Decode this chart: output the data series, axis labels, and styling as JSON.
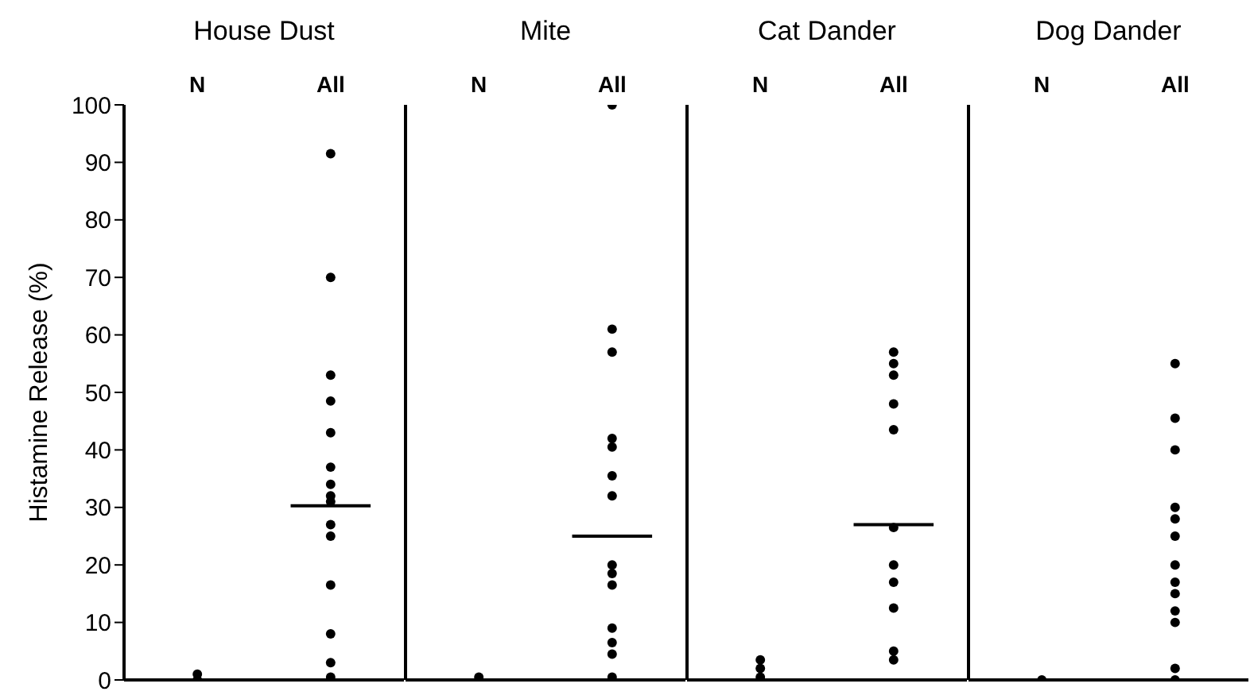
{
  "chart_data": [
    {
      "type": "scatter",
      "title": "House Dust",
      "ylabel": "Histamine Release (%)",
      "categories": [
        "N",
        "All"
      ],
      "marker": "circle",
      "ylim": [
        0,
        100
      ],
      "yticks": [
        0,
        10,
        20,
        30,
        40,
        50,
        60,
        70,
        80,
        90,
        100
      ],
      "series": [
        {
          "color": "#000000",
          "x": [
            "N",
            "N",
            "All",
            "All",
            "All",
            "All",
            "All",
            "All",
            "All",
            "All",
            "All",
            "All",
            "All",
            "All",
            "All",
            "All",
            "All"
          ],
          "values": [
            0,
            1,
            91.5,
            70,
            53,
            48.5,
            43,
            37,
            34,
            32,
            31,
            27,
            25,
            16.5,
            8,
            3,
            0.5
          ]
        }
      ],
      "ref_lines": [
        {
          "axis": "y",
          "value": 30.3
        }
      ]
    },
    {
      "type": "scatter",
      "title": "Mite",
      "categories": [
        "N",
        "All"
      ],
      "marker": "circle",
      "ylim": [
        0,
        100
      ],
      "yticks": [
        0,
        10,
        20,
        30,
        40,
        50,
        60,
        70,
        80,
        90,
        100
      ],
      "tick_labels": "x",
      "series": [
        {
          "color": "#000000",
          "x": [
            "N",
            "All",
            "All",
            "All",
            "All",
            "All",
            "All",
            "All",
            "All",
            "All",
            "All",
            "All",
            "All",
            "All",
            "All"
          ],
          "values": [
            0.5,
            100,
            61,
            57,
            42,
            40.5,
            35.5,
            32,
            20,
            18.5,
            16.5,
            9,
            6.5,
            4.5,
            0.5
          ]
        }
      ],
      "ref_lines": [
        {
          "axis": "y",
          "value": 25
        }
      ]
    },
    {
      "type": "scatter",
      "title": "Cat Dander",
      "categories": [
        "N",
        "All"
      ],
      "marker": "circle",
      "ylim": [
        0,
        100
      ],
      "yticks": [
        0,
        10,
        20,
        30,
        40,
        50,
        60,
        70,
        80,
        90,
        100
      ],
      "tick_labels": "x",
      "series": [
        {
          "color": "#000000",
          "x": [
            "N",
            "N",
            "N",
            "All",
            "All",
            "All",
            "All",
            "All",
            "All",
            "All",
            "All",
            "All",
            "All",
            "All"
          ],
          "values": [
            0.5,
            2,
            3.5,
            57,
            55,
            53,
            48,
            43.5,
            26.5,
            20,
            17,
            12.5,
            5,
            3.5
          ]
        }
      ],
      "ref_lines": [
        {
          "axis": "y",
          "value": 27
        }
      ]
    },
    {
      "type": "scatter",
      "title": "Dog Dander",
      "categories": [
        "N",
        "All"
      ],
      "marker": "circle",
      "ylim": [
        0,
        100
      ],
      "yticks": [
        0,
        10,
        20,
        30,
        40,
        50,
        60,
        70,
        80,
        90,
        100
      ],
      "tick_labels": "x",
      "series": [
        {
          "color": "#000000",
          "x": [
            "N",
            "All",
            "All",
            "All",
            "All",
            "All",
            "All",
            "All",
            "All",
            "All",
            "All",
            "All",
            "All",
            "All"
          ],
          "values": [
            0,
            55,
            45.5,
            40,
            30,
            28,
            25,
            20,
            17,
            15,
            12,
            10,
            2,
            0
          ]
        }
      ]
    }
  ]
}
